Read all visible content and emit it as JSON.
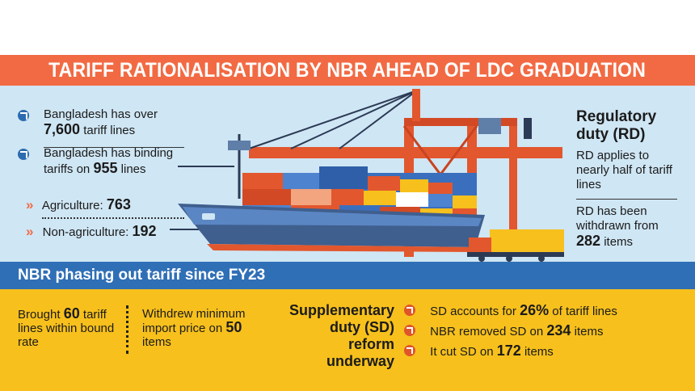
{
  "banner": {
    "title": "TARIFF RATIONALISATION BY NBR AHEAD OF LDC GRADUATION"
  },
  "left": {
    "fact1_a": "Bangladesh has over",
    "fact1_num": "7,600",
    "fact1_b": "tariff lines",
    "fact2_a": "Bangladesh has binding",
    "fact2_b": "tariffs on",
    "fact2_num": "955",
    "fact2_c": "lines",
    "agri_label": "Agriculture:",
    "agri_num": "763",
    "nonagri_label": "Non-agriculture:",
    "nonagri_num": "192"
  },
  "right": {
    "heading_1": "Regulatory",
    "heading_2": "duty (RD)",
    "p1": "RD applies to nearly half of tariff lines",
    "p2_a": "RD has been withdrawn from",
    "p2_num": "282",
    "p2_b": "items"
  },
  "phase": {
    "title": "NBR phasing out tariff since FY23"
  },
  "bottom": {
    "b1_a": "Brought",
    "b1_num": "60",
    "b1_b": "tariff",
    "b1_c": "lines within bound",
    "b1_d": "rate",
    "b2_a": "Withdrew minimum",
    "b2_b": "import price on",
    "b2_num": "50",
    "b2_c": "items",
    "sd_head_1": "Supplementary",
    "sd_head_2": "duty (SD) reform",
    "sd_head_3": "underway",
    "sd1_a": "SD accounts for",
    "sd1_num": "26%",
    "sd1_b": "of tariff lines",
    "sd2_a": "NBR removed SD on",
    "sd2_num": "234",
    "sd2_b": "items",
    "sd3_a": "It cut SD on",
    "sd3_num": "172",
    "sd3_b": "items"
  },
  "colors": {
    "orange": "#f26a43",
    "blue": "#2f6fb6",
    "yellow": "#f7c01c",
    "sky": "#cfe6f4"
  }
}
